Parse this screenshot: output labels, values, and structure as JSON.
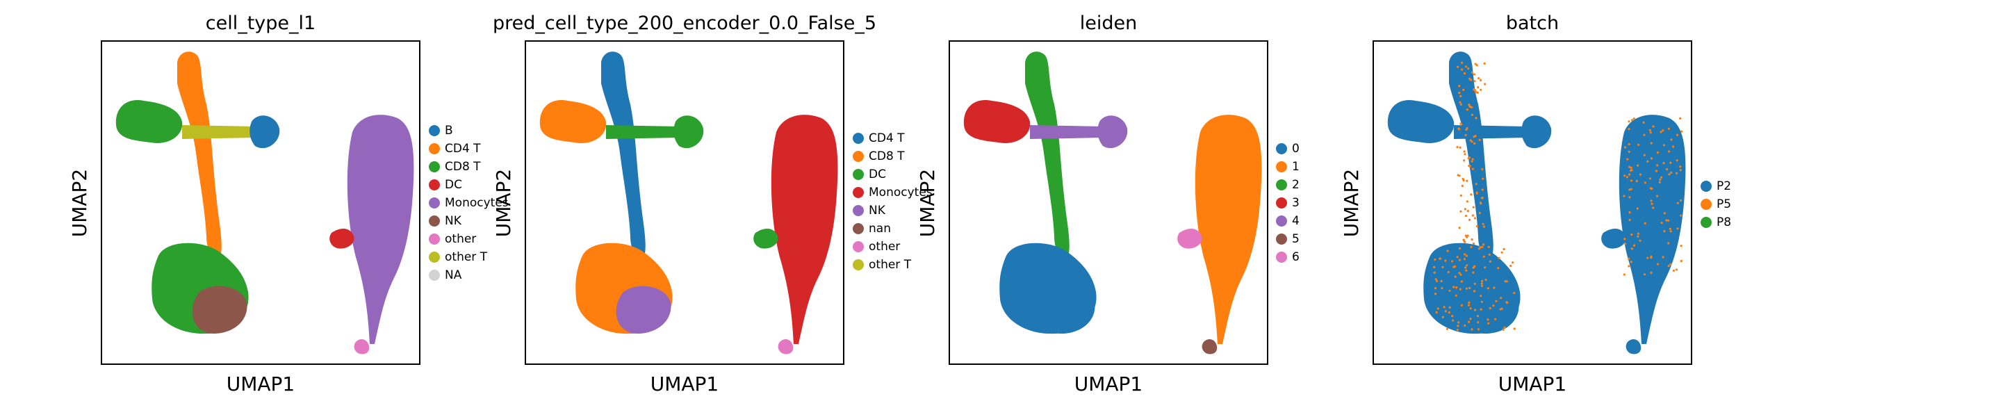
{
  "chart_data": [
    {
      "type": "scatter",
      "title": "cell_type_l1",
      "xlabel": "UMAP1",
      "ylabel": "UMAP2",
      "grid": false,
      "legend": "right",
      "series": [
        {
          "name": "B",
          "color": "#1f77b4"
        },
        {
          "name": "CD4 T",
          "color": "#ff7f0e"
        },
        {
          "name": "CD8 T",
          "color": "#2ca02c"
        },
        {
          "name": "DC",
          "color": "#d62728"
        },
        {
          "name": "Monocytes",
          "color": "#9467bd"
        },
        {
          "name": "NK",
          "color": "#8c564b"
        },
        {
          "name": "other",
          "color": "#e377c2"
        },
        {
          "name": "other T",
          "color": "#bcbd22"
        },
        {
          "name": "NA",
          "color": "#d3d3d3"
        }
      ]
    },
    {
      "type": "scatter",
      "title": "pred_cell_type_200_encoder_0.0_False_5",
      "xlabel": "UMAP1",
      "ylabel": "UMAP2",
      "grid": false,
      "legend": "right",
      "series": [
        {
          "name": "CD4 T",
          "color": "#1f77b4"
        },
        {
          "name": "CD8 T",
          "color": "#ff7f0e"
        },
        {
          "name": "DC",
          "color": "#2ca02c"
        },
        {
          "name": "Monocytes",
          "color": "#d62728"
        },
        {
          "name": "NK",
          "color": "#9467bd"
        },
        {
          "name": "nan",
          "color": "#8c564b"
        },
        {
          "name": "other",
          "color": "#e377c2"
        },
        {
          "name": "other T",
          "color": "#bcbd22"
        }
      ]
    },
    {
      "type": "scatter",
      "title": "leiden",
      "xlabel": "UMAP1",
      "ylabel": "UMAP2",
      "grid": false,
      "legend": "right",
      "series": [
        {
          "name": "0",
          "color": "#1f77b4"
        },
        {
          "name": "1",
          "color": "#ff7f0e"
        },
        {
          "name": "2",
          "color": "#2ca02c"
        },
        {
          "name": "3",
          "color": "#d62728"
        },
        {
          "name": "4",
          "color": "#9467bd"
        },
        {
          "name": "5",
          "color": "#8c564b"
        },
        {
          "name": "6",
          "color": "#e377c2"
        }
      ]
    },
    {
      "type": "scatter",
      "title": "batch",
      "xlabel": "UMAP1",
      "ylabel": "UMAP2",
      "grid": false,
      "legend": "right",
      "series": [
        {
          "name": "P2",
          "color": "#1f77b4"
        },
        {
          "name": "P5",
          "color": "#ff7f0e"
        },
        {
          "name": "P8",
          "color": "#2ca02c"
        }
      ]
    }
  ]
}
